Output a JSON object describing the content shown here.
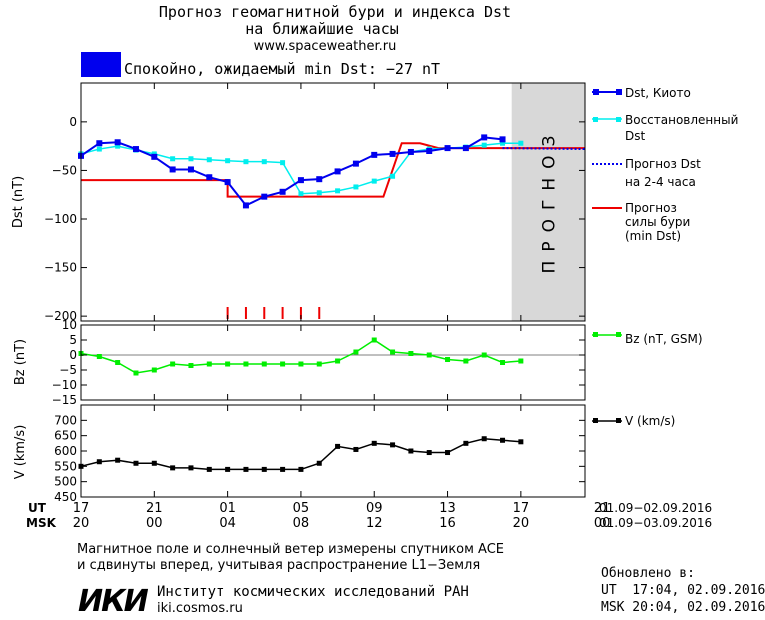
{
  "header": {
    "title_line1": "Прогноз геомагнитной бури и индекса Dst",
    "title_line2": "на ближайшие часы",
    "website": "www.spaceweather.ru",
    "status_color": "#0000ee",
    "status_text": "Спокойно, ожидаемый min Dst: −27 nT"
  },
  "chart_data": [
    {
      "type": "line",
      "ylabel": "Dst (nT)",
      "ylim": [
        -205,
        40
      ],
      "yticks": [
        0,
        -50,
        -100,
        -150,
        -200
      ],
      "forecast_label": "ПРОГНОЗ",
      "forecast_x_range": [
        23.5,
        27.5
      ],
      "series": [
        {
          "name": "Dst, Киото",
          "color": "#0000ee",
          "x": [
            0,
            1,
            2,
            3,
            4,
            5,
            6,
            7,
            8,
            9,
            10,
            11,
            12,
            13,
            14,
            15,
            16,
            17,
            18,
            19,
            20,
            21,
            22,
            23
          ],
          "values": [
            -35,
            -22,
            -21,
            -28,
            -36,
            -49,
            -49,
            -57,
            -62,
            -86,
            -77,
            -72,
            -60,
            -59,
            -51,
            -43,
            -34,
            -33,
            -31,
            -30,
            -27,
            -27,
            -16,
            -18
          ]
        },
        {
          "name": "Восстановленный Dst",
          "color": "#00eeee",
          "x": [
            0,
            1,
            2,
            3,
            4,
            5,
            6,
            7,
            8,
            9,
            10,
            11,
            12,
            13,
            14,
            15,
            16,
            17,
            18,
            19,
            20,
            21,
            22,
            23,
            24
          ],
          "values": [
            -33,
            -28,
            -25,
            -29,
            -33,
            -38,
            -38,
            -39,
            -40,
            -41,
            -41,
            -42,
            -74,
            -73,
            -71,
            -67,
            -61,
            -56,
            -31,
            -28,
            -27,
            -26,
            -24,
            -22,
            -22
          ]
        },
        {
          "name": "Прогноз Dst на 2-4 часа",
          "color": "#0000ee",
          "x": [
            23,
            27.5
          ],
          "values": [
            -27,
            -28
          ]
        },
        {
          "name": "Прогноз силы бури (min Dst)",
          "color": "#ee0000",
          "step_x": [
            0,
            8,
            8,
            16.5,
            17.5,
            18.5,
            19.5,
            27.5
          ],
          "step_values": [
            -60,
            -60,
            -77,
            -77,
            -22,
            -22,
            -27,
            -27
          ]
        }
      ],
      "storm_marks_x": [
        8,
        9,
        10,
        11,
        12,
        13
      ]
    },
    {
      "type": "line",
      "ylabel": "Bz (nT)",
      "ylim": [
        -15,
        10
      ],
      "yticks": [
        10,
        5,
        0,
        -5,
        -10,
        -15
      ],
      "series": [
        {
          "name": "Bz (nT, GSM)",
          "color": "#00ee00",
          "x": [
            0,
            1,
            2,
            3,
            4,
            5,
            6,
            7,
            8,
            9,
            10,
            11,
            12,
            13,
            14,
            15,
            16,
            17,
            18,
            19,
            20,
            21,
            22,
            23,
            24
          ],
          "values": [
            0.5,
            -0.5,
            -2.5,
            -6,
            -5,
            -3,
            -3.5,
            -3,
            -3,
            -3,
            -3,
            -3,
            -3,
            -3,
            -2,
            1,
            5,
            1,
            0.5,
            0,
            -1.5,
            -2,
            0,
            -2.5,
            -2
          ]
        }
      ]
    },
    {
      "type": "line",
      "ylabel": "V (km/s)",
      "ylim": [
        450,
        750
      ],
      "yticks": [
        700,
        650,
        600,
        550,
        500,
        450
      ],
      "series": [
        {
          "name": "V (km/s)",
          "color": "#000000",
          "x": [
            0,
            1,
            2,
            3,
            4,
            5,
            6,
            7,
            8,
            9,
            10,
            11,
            12,
            13,
            14,
            15,
            16,
            17,
            18,
            19,
            20,
            21,
            22,
            23,
            24
          ],
          "values": [
            550,
            565,
            570,
            560,
            560,
            545,
            545,
            540,
            540,
            540,
            540,
            540,
            540,
            560,
            615,
            605,
            625,
            620,
            600,
            595,
            595,
            625,
            640,
            635,
            630
          ]
        }
      ]
    }
  ],
  "time_axis": {
    "ut_label": "UT",
    "msk_label": "MSK",
    "ut_ticks": [
      "17",
      "21",
      "01",
      "05",
      "09",
      "13",
      "17",
      "21"
    ],
    "msk_ticks": [
      "20",
      "00",
      "04",
      "08",
      "12",
      "16",
      "20",
      "00"
    ],
    "ut_range": "01.09−02.09.2016",
    "msk_range": "01.09−03.09.2016"
  },
  "footer": {
    "note_line1": "Магнитное поле и солнечный ветер измерены спутником ACE",
    "note_line2": "и сдвинуты вперед, учитывая распространение L1−Земля",
    "logo_text": "ИКИ",
    "institute_name": "Институт космических исследований РАН",
    "institute_site": "iki.cosmos.ru",
    "updated_label": "Обновлено в:",
    "updated_ut": "UT  17:04, 02.09.2016",
    "updated_msk": "MSK 20:04, 02.09.2016"
  }
}
